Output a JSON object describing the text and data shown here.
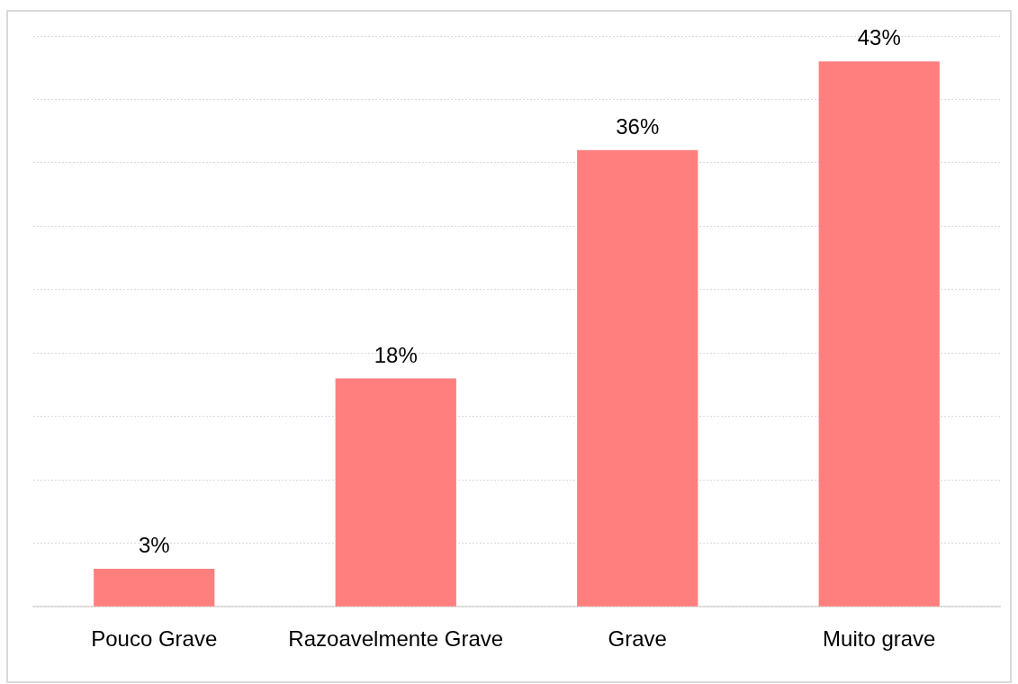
{
  "chart_data": {
    "type": "bar",
    "categories": [
      "Pouco Grave",
      "Razoavelmente Grave",
      "Grave",
      "Muito grave"
    ],
    "values": [
      3,
      18,
      36,
      43
    ],
    "value_labels": [
      "3%",
      "18%",
      "36%",
      "43%"
    ],
    "color": "#ff7f7f",
    "ylim": [
      0,
      45
    ],
    "yticks": [
      {
        "value": 0,
        "label": null
      },
      {
        "value": 5,
        "label": null
      },
      {
        "value": 10,
        "label": null
      },
      {
        "value": 15,
        "label": null
      },
      {
        "value": 20,
        "label": null
      },
      {
        "value": 25,
        "label": null
      },
      {
        "value": 30,
        "label": null
      },
      {
        "value": 35,
        "label": null
      },
      {
        "value": 40,
        "label": null
      },
      {
        "value": 45,
        "label": null
      }
    ],
    "grid": "y",
    "tick_labels": "x"
  }
}
